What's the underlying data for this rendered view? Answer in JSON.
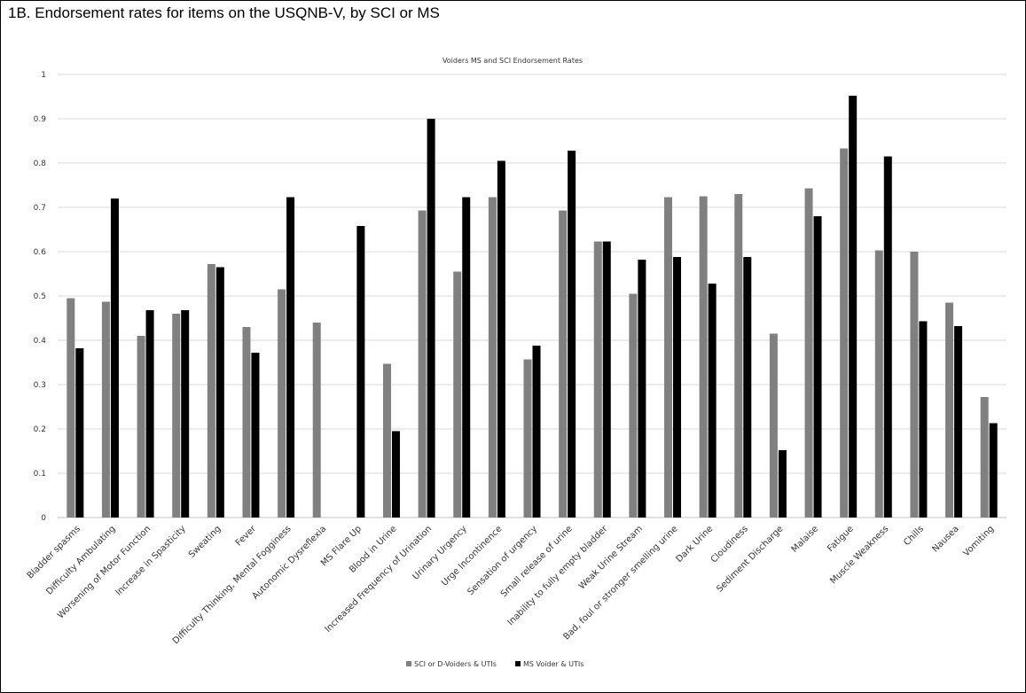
{
  "header": {
    "title": "1B. Endorsement rates for items on the USQNB-V,  by SCI or MS"
  },
  "chart_data": {
    "type": "bar",
    "title": "Voiders MS and SCI Endorsement Rates",
    "xlabel": "",
    "ylabel": "",
    "ylim": [
      0,
      1
    ],
    "yticks": [
      "0",
      "0.1",
      "0.2",
      "0.3",
      "0.4",
      "0.5",
      "0.6",
      "0.7",
      "0.8",
      "0.9",
      "1"
    ],
    "grid": true,
    "legend_position": "bottom",
    "categories": [
      "Bladder spasms",
      "Difficulty Ambulating",
      "Worsening of Motor Function",
      "Increase in Spasticity",
      "Sweating",
      "Fever",
      "Difficulty Thinking, Mental Fogginess",
      "Autonomic Dysreflexia",
      "MS Flare Up",
      "Blood in Urine",
      "Increased Frequency of Urination",
      "Urinary Urgency",
      "Urge Incontinence",
      "Sensation of urgency",
      "Small release of urine",
      "Inability to fully empty bladder",
      "Weak Urine Stream",
      "Bad, foul or stronger smelling urine",
      "Dark Urine",
      "Cloudiness",
      "Sediment Discharge",
      "Malaise",
      "Fatigue",
      "Muscle Weakness",
      "Chills",
      "Nausea",
      "Vomiting"
    ],
    "series": [
      {
        "name": "SCI or D-Voiders & UTIs",
        "color": "#808080",
        "values": [
          0.495,
          0.487,
          0.41,
          0.46,
          0.572,
          0.43,
          0.515,
          0.44,
          null,
          0.347,
          0.693,
          0.555,
          0.723,
          0.357,
          0.693,
          0.623,
          0.505,
          0.723,
          0.725,
          0.73,
          0.415,
          0.743,
          0.833,
          0.603,
          0.6,
          0.485,
          0.272
        ]
      },
      {
        "name": "MS Voider & UTIs",
        "color": "#000000",
        "values": [
          0.382,
          0.72,
          0.468,
          0.468,
          0.565,
          0.372,
          0.723,
          null,
          0.658,
          0.195,
          0.9,
          0.723,
          0.805,
          0.388,
          0.828,
          0.623,
          0.582,
          0.588,
          0.528,
          0.588,
          0.152,
          0.68,
          0.952,
          0.815,
          0.443,
          0.432,
          0.213
        ]
      }
    ]
  }
}
